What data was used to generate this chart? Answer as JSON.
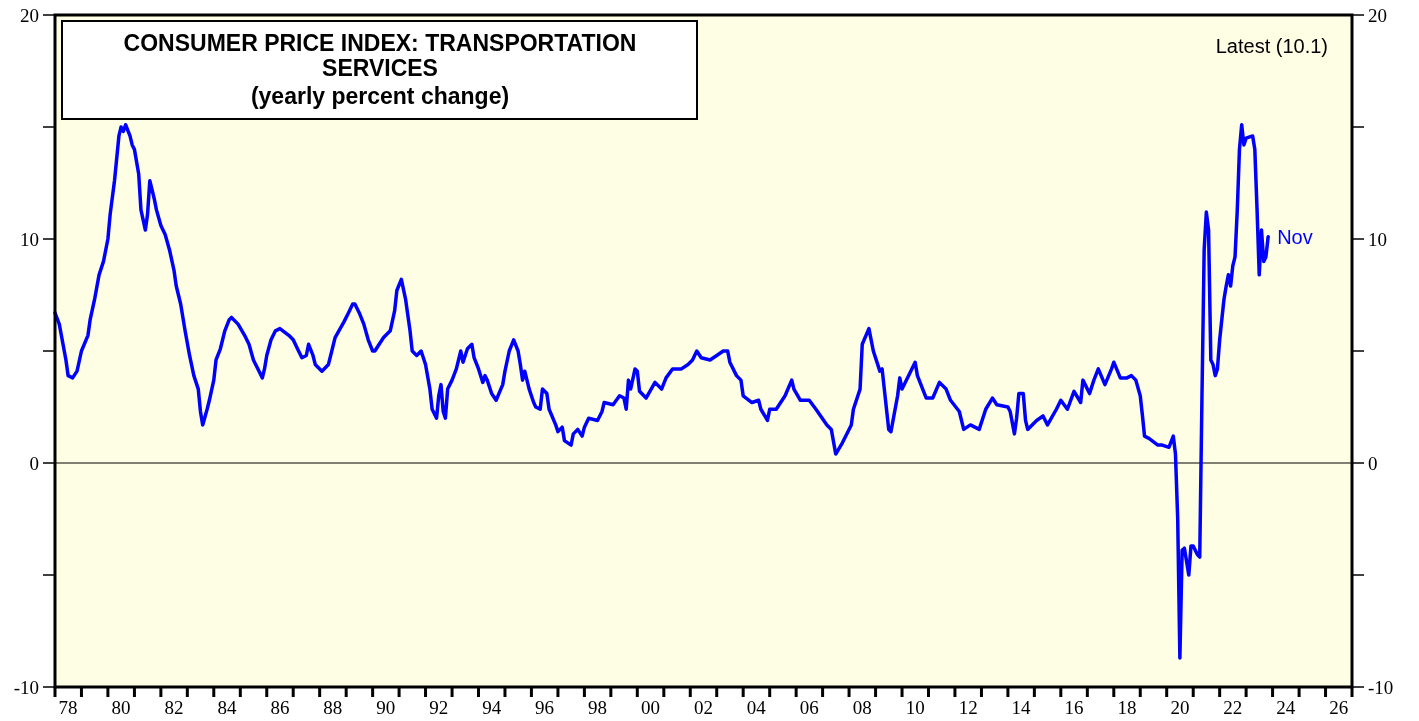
{
  "chart_data": {
    "type": "line",
    "title": "CONSUMER PRICE INDEX: TRANSPORTATION SERVICES",
    "subtitle": "(yearly percent change)",
    "annotations": [
      "Latest (10.1)",
      {
        "text": "Nov",
        "x": "2023-11",
        "y": 10.1
      }
    ],
    "xlim": [
      "1978",
      "2027"
    ],
    "xticks": [
      {
        "value": "1978",
        "label": null
      },
      {
        "value": "1978-07",
        "label": "78"
      },
      {
        "value": "1979",
        "label": null
      },
      {
        "value": "1980",
        "label": null
      },
      {
        "value": "1980-07",
        "label": "80"
      },
      {
        "value": "1981",
        "label": null
      },
      {
        "value": "1982",
        "label": null
      },
      {
        "value": "1982-07",
        "label": "82"
      },
      {
        "value": "1983",
        "label": null
      },
      {
        "value": "1984",
        "label": null
      },
      {
        "value": "1984-07",
        "label": "84"
      },
      {
        "value": "1985",
        "label": null
      },
      {
        "value": "1986",
        "label": null
      },
      {
        "value": "1986-07",
        "label": "86"
      },
      {
        "value": "1987",
        "label": null
      },
      {
        "value": "1988",
        "label": null
      },
      {
        "value": "1988-07",
        "label": "88"
      },
      {
        "value": "1989",
        "label": null
      },
      {
        "value": "1990",
        "label": null
      },
      {
        "value": "1990-07",
        "label": "90"
      },
      {
        "value": "1991",
        "label": null
      },
      {
        "value": "1992",
        "label": null
      },
      {
        "value": "1992-07",
        "label": "92"
      },
      {
        "value": "1993",
        "label": null
      },
      {
        "value": "1994",
        "label": null
      },
      {
        "value": "1994-07",
        "label": "94"
      },
      {
        "value": "1995",
        "label": null
      },
      {
        "value": "1996",
        "label": null
      },
      {
        "value": "1996-07",
        "label": "96"
      },
      {
        "value": "1997",
        "label": null
      },
      {
        "value": "1998",
        "label": null
      },
      {
        "value": "1998-07",
        "label": "98"
      },
      {
        "value": "1999",
        "label": null
      },
      {
        "value": "2000",
        "label": null
      },
      {
        "value": "2000-07",
        "label": "00"
      },
      {
        "value": "2001",
        "label": null
      },
      {
        "value": "2002",
        "label": null
      },
      {
        "value": "2002-07",
        "label": "02"
      },
      {
        "value": "2003",
        "label": null
      },
      {
        "value": "2004",
        "label": null
      },
      {
        "value": "2004-07",
        "label": "04"
      },
      {
        "value": "2005",
        "label": null
      },
      {
        "value": "2006",
        "label": null
      },
      {
        "value": "2006-07",
        "label": "06"
      },
      {
        "value": "2007",
        "label": null
      },
      {
        "value": "2008",
        "label": null
      },
      {
        "value": "2008-07",
        "label": "08"
      },
      {
        "value": "2009",
        "label": null
      },
      {
        "value": "2010",
        "label": null
      },
      {
        "value": "2010-07",
        "label": "10"
      },
      {
        "value": "2011",
        "label": null
      },
      {
        "value": "2012",
        "label": null
      },
      {
        "value": "2012-07",
        "label": "12"
      },
      {
        "value": "2013",
        "label": null
      },
      {
        "value": "2014",
        "label": null
      },
      {
        "value": "2014-07",
        "label": "14"
      },
      {
        "value": "2015",
        "label": null
      },
      {
        "value": "2016",
        "label": null
      },
      {
        "value": "2016-07",
        "label": "16"
      },
      {
        "value": "2017",
        "label": null
      },
      {
        "value": "2018",
        "label": null
      },
      {
        "value": "2018-07",
        "label": "18"
      },
      {
        "value": "2019",
        "label": null
      },
      {
        "value": "2020",
        "label": null
      },
      {
        "value": "2020-07",
        "label": "20"
      },
      {
        "value": "2021",
        "label": null
      },
      {
        "value": "2022",
        "label": null
      },
      {
        "value": "2022-07",
        "label": "22"
      },
      {
        "value": "2023",
        "label": null
      },
      {
        "value": "2024",
        "label": null
      },
      {
        "value": "2024-07",
        "label": "24"
      },
      {
        "value": "2025",
        "label": null
      },
      {
        "value": "2026",
        "label": null
      },
      {
        "value": "2026-07",
        "label": "26"
      },
      {
        "value": "2027",
        "label": null
      }
    ],
    "ylim": [
      -10,
      20
    ],
    "yticks": [
      -10,
      {
        "value": -5,
        "label": null
      },
      0,
      {
        "value": 5,
        "label": null
      },
      10,
      {
        "value": 15,
        "label": null
      },
      20
    ],
    "y2lim": [
      -10,
      20
    ],
    "y2ticks": [
      -10,
      {
        "value": -5,
        "label": null
      },
      0,
      {
        "value": 5,
        "label": null
      },
      10,
      {
        "value": 15,
        "label": null
      },
      20
    ],
    "ref_lines": [
      {
        "axis": "y",
        "value": 0,
        "color": "#000000"
      }
    ],
    "grid": false,
    "marker": "none",
    "line_style": "solid",
    "series": [
      {
        "color": "#0000ff",
        "x": [
          "1978-01",
          "1978-03",
          "1978-06",
          "1978-07",
          "1978-09",
          "1978-11",
          "1979-01",
          "1979-04",
          "1979-05",
          "1979-07",
          "1979-09",
          "1979-11",
          "1980-01",
          "1980-02",
          "1980-04",
          "1980-06",
          "1980-07",
          "1980-08",
          "1980-09",
          "1980-11",
          "1980-12",
          "1981-01",
          "1981-03",
          "1981-04",
          "1981-06",
          "1981-07",
          "1981-08",
          "1981-09",
          "1981-10",
          "1981-11",
          "1982-01",
          "1982-03",
          "1982-05",
          "1982-07",
          "1982-08",
          "1982-10",
          "1982-12",
          "1983-02",
          "1983-04",
          "1983-06",
          "1983-07",
          "1983-08",
          "1983-10",
          "1983-11",
          "1984-01",
          "1984-02",
          "1984-04",
          "1984-06",
          "1984-08",
          "1984-09",
          "1984-12",
          "1985-03",
          "1985-05",
          "1985-07",
          "1985-09",
          "1985-11",
          "1985-12",
          "1986-01",
          "1986-03",
          "1986-05",
          "1986-07",
          "1986-11",
          "1987-01",
          "1987-03",
          "1987-05",
          "1987-07",
          "1987-08",
          "1987-10",
          "1987-11",
          "1988-01",
          "1988-02",
          "1988-05",
          "1988-06",
          "1988-08",
          "1988-12",
          "1989-02",
          "1989-04",
          "1989-05",
          "1989-07",
          "1989-09",
          "1989-11",
          "1990-01",
          "1990-02",
          "1990-04",
          "1990-06",
          "1990-09",
          "1990-11",
          "1990-12",
          "1991-02",
          "1991-04",
          "1991-06",
          "1991-07",
          "1991-09",
          "1991-11",
          "1992-01",
          "1992-03",
          "1992-04",
          "1992-06",
          "1992-07",
          "1992-08",
          "1992-09",
          "1992-10",
          "1992-11",
          "1993-01",
          "1993-03",
          "1993-05",
          "1993-06",
          "1993-08",
          "1993-10",
          "1993-11",
          "1994-01",
          "1994-03",
          "1994-04",
          "1994-05",
          "1994-07",
          "1994-09",
          "1994-12",
          "1995-01",
          "1995-03",
          "1995-05",
          "1995-07",
          "1995-08",
          "1995-09",
          "1995-10",
          "1995-12",
          "1996-02",
          "1996-03",
          "1996-05",
          "1996-06",
          "1996-08",
          "1996-09",
          "1996-12",
          "1997-01",
          "1997-03",
          "1997-04",
          "1997-07",
          "1997-08",
          "1997-10",
          "1997-12",
          "1998-01",
          "1998-03",
          "1998-07",
          "1998-09",
          "1998-10",
          "1999-02",
          "1999-05",
          "1999-07",
          "1999-08",
          "1999-09",
          "1999-10",
          "1999-12",
          "2000-01",
          "2000-02",
          "2000-05",
          "2000-09",
          "2000-12",
          "2001-02",
          "2001-05",
          "2001-09",
          "2001-12",
          "2002-02",
          "2002-04",
          "2002-06",
          "2002-10",
          "2003-01",
          "2003-04",
          "2003-06",
          "2003-07",
          "2003-10",
          "2003-12",
          "2004-01",
          "2004-05",
          "2004-08",
          "2004-09",
          "2004-12",
          "2005-01",
          "2005-04",
          "2005-08",
          "2005-11",
          "2005-12",
          "2006-03",
          "2006-07",
          "2006-10",
          "2007-03",
          "2007-05",
          "2007-07",
          "2007-10",
          "2008-02",
          "2008-03",
          "2008-06",
          "2008-07",
          "2008-10",
          "2008-12",
          "2009-03",
          "2009-04",
          "2009-07",
          "2009-08",
          "2009-11",
          "2009-12",
          "2010-01",
          "2010-04",
          "2010-07",
          "2010-08",
          "2010-12",
          "2011-03",
          "2011-06",
          "2011-09",
          "2011-11",
          "2012-03",
          "2012-05",
          "2012-08",
          "2012-12",
          "2013-03",
          "2013-06",
          "2013-08",
          "2014-01",
          "2014-02",
          "2014-04",
          "2014-05",
          "2014-06",
          "2014-08",
          "2014-09",
          "2014-10",
          "2015-02",
          "2015-05",
          "2015-07",
          "2015-11",
          "2016-01",
          "2016-04",
          "2016-07",
          "2016-10",
          "2016-11",
          "2017-02",
          "2017-04",
          "2017-06",
          "2017-09",
          "2017-12",
          "2018-01",
          "2018-04",
          "2018-07",
          "2018-09",
          "2018-11",
          "2019-01",
          "2019-02",
          "2019-03",
          "2019-05",
          "2019-09",
          "2019-11",
          "2020-02",
          "2020-04",
          "2020-05",
          "2020-06",
          "2020-07",
          "2020-08",
          "2020-09",
          "2020-11",
          "2020-12",
          "2021-01",
          "2021-03",
          "2021-04",
          "2021-05",
          "2021-06",
          "2021-07",
          "2021-08",
          "2021-09",
          "2021-10",
          "2021-11",
          "2021-12",
          "2022-01",
          "2022-03",
          "2022-04",
          "2022-05",
          "2022-06",
          "2022-07",
          "2022-08",
          "2022-09",
          "2022-10",
          "2022-11",
          "2022-12",
          "2023-01",
          "2023-04",
          "2023-05",
          "2023-06",
          "2023-07",
          "2023-08",
          "2023-09",
          "2023-10",
          "2023-11"
        ],
        "values": [
          6.7,
          6.2,
          4.6,
          3.9,
          3.8,
          4.1,
          5.0,
          5.7,
          6.4,
          7.3,
          8.4,
          9.0,
          10.0,
          11.1,
          12.6,
          14.6,
          15.0,
          14.8,
          15.1,
          14.6,
          14.2,
          14.0,
          12.9,
          11.3,
          10.4,
          11.1,
          12.6,
          12.2,
          11.8,
          11.3,
          10.6,
          10.2,
          9.5,
          8.6,
          7.9,
          7.1,
          5.9,
          4.8,
          3.9,
          3.3,
          2.3,
          1.7,
          2.4,
          2.8,
          3.7,
          4.6,
          5.1,
          5.9,
          6.4,
          6.5,
          6.2,
          5.7,
          5.3,
          4.6,
          4.2,
          3.8,
          4.2,
          4.8,
          5.5,
          5.9,
          6.0,
          5.7,
          5.5,
          5.1,
          4.7,
          4.8,
          5.3,
          4.8,
          4.4,
          4.2,
          4.1,
          4.4,
          4.8,
          5.6,
          6.3,
          6.7,
          7.1,
          7.1,
          6.7,
          6.2,
          5.5,
          5.0,
          5.0,
          5.3,
          5.6,
          5.9,
          6.8,
          7.7,
          8.2,
          7.3,
          5.9,
          5.0,
          4.8,
          5.0,
          4.4,
          3.3,
          2.4,
          2.0,
          3.0,
          3.5,
          2.3,
          2.0,
          3.3,
          3.7,
          4.2,
          5.0,
          4.5,
          5.1,
          5.3,
          4.7,
          4.2,
          3.6,
          3.9,
          3.7,
          3.1,
          2.8,
          3.5,
          4.1,
          5.0,
          5.5,
          5.0,
          4.4,
          3.7,
          4.1,
          3.3,
          2.7,
          2.5,
          2.4,
          3.3,
          3.1,
          2.4,
          1.7,
          1.4,
          1.6,
          1.0,
          0.8,
          1.3,
          1.5,
          1.2,
          1.6,
          2.0,
          1.9,
          2.3,
          2.7,
          2.6,
          3.0,
          2.9,
          2.4,
          3.7,
          3.3,
          4.2,
          4.1,
          3.2,
          2.9,
          3.6,
          3.3,
          3.8,
          4.2,
          4.2,
          4.4,
          4.6,
          5.0,
          4.7,
          4.6,
          4.8,
          5.0,
          5.0,
          4.5,
          3.9,
          3.7,
          3.0,
          2.7,
          2.8,
          2.4,
          1.9,
          2.4,
          2.4,
          3.0,
          3.7,
          3.3,
          2.8,
          2.8,
          2.4,
          1.7,
          1.5,
          0.4,
          0.9,
          1.7,
          2.4,
          3.3,
          5.3,
          6.0,
          5.0,
          4.1,
          4.2,
          1.5,
          1.4,
          3.0,
          3.8,
          3.3,
          3.9,
          4.5,
          3.9,
          2.9,
          2.9,
          3.6,
          3.3,
          2.8,
          2.3,
          1.5,
          1.7,
          1.5,
          2.4,
          2.9,
          2.6,
          2.5,
          2.3,
          1.3,
          2.0,
          3.1,
          3.1,
          1.9,
          1.5,
          1.9,
          2.1,
          1.7,
          2.4,
          2.8,
          2.4,
          3.2,
          2.7,
          3.7,
          3.1,
          3.7,
          4.2,
          3.5,
          4.2,
          4.5,
          3.8,
          3.8,
          3.9,
          3.7,
          3.0,
          2.1,
          1.2,
          1.1,
          0.8,
          0.8,
          0.7,
          1.2,
          0.4,
          -2.5,
          -8.7,
          -3.9,
          -3.8,
          -5.0,
          -3.7,
          -3.7,
          -4.1,
          -4.2,
          2.8,
          9.5,
          11.2,
          10.4,
          4.6,
          4.4,
          3.9,
          4.2,
          5.5,
          7.3,
          7.9,
          8.4,
          7.9,
          8.8,
          9.2,
          11.3,
          14.0,
          15.1,
          14.2,
          14.5,
          14.6,
          14.0,
          11.3,
          8.4,
          10.4,
          9.0,
          9.2,
          10.1
        ]
      }
    ]
  }
}
